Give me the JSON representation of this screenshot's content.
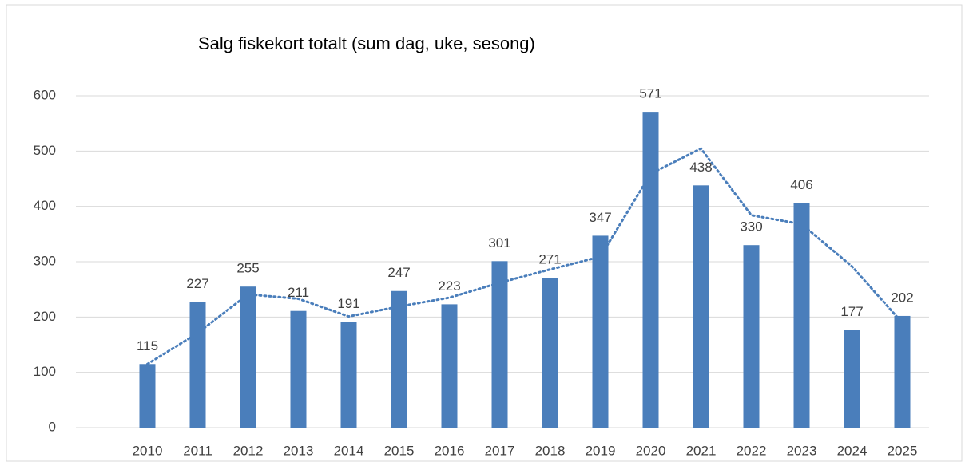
{
  "chart_data": {
    "type": "bar",
    "title": "Salg fiskekort totalt (sum dag, uke, sesong)",
    "categories": [
      "2010",
      "2011",
      "2012",
      "2013",
      "2014",
      "2015",
      "2016",
      "2017",
      "2018",
      "2019",
      "2020",
      "2021",
      "2022",
      "2023",
      "2024",
      "2025"
    ],
    "values": [
      115,
      227,
      255,
      211,
      191,
      247,
      223,
      301,
      271,
      347,
      571,
      438,
      330,
      406,
      177,
      202
    ],
    "color": "#4a7ebb",
    "trendline": {
      "values": [
        115,
        171,
        241,
        233,
        201,
        219,
        235,
        262,
        286,
        309,
        459,
        504.5,
        384,
        368,
        291.5,
        189.5
      ],
      "color": "#4a7ebb"
    },
    "ylim": [
      0,
      600
    ],
    "yticks": [
      0,
      100,
      200,
      300,
      400,
      500,
      600
    ],
    "grid": true
  }
}
